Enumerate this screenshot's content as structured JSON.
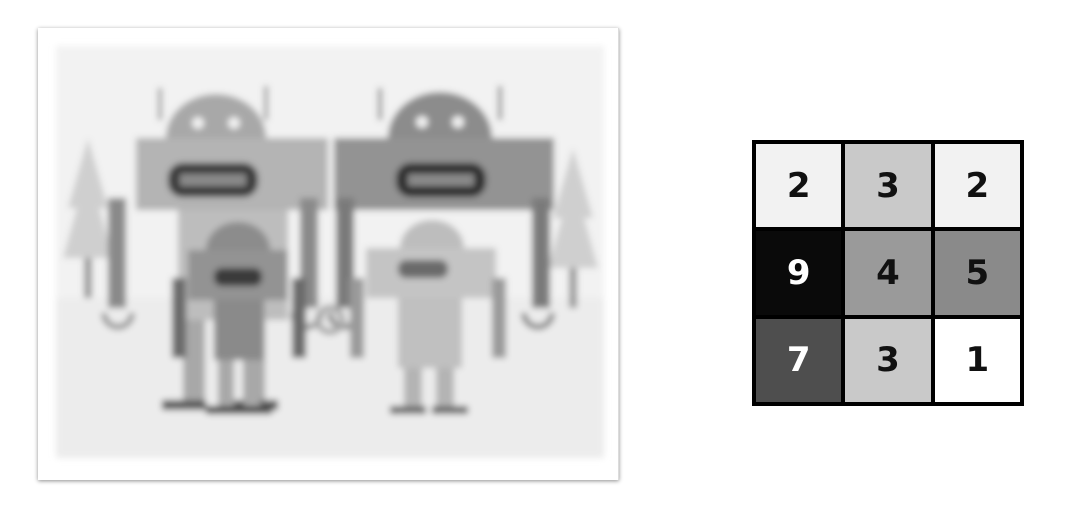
{
  "image": {
    "subject": "robot-family-illustration",
    "style": "blurred-grayscale"
  },
  "kernel": {
    "rows": [
      [
        {
          "value": "2",
          "shade": "#f2f2f2",
          "text_color": "#111111"
        },
        {
          "value": "3",
          "shade": "#c9c9c9",
          "text_color": "#111111"
        },
        {
          "value": "2",
          "shade": "#f2f2f2",
          "text_color": "#111111"
        }
      ],
      [
        {
          "value": "9",
          "shade": "#0a0a0a",
          "text_color": "#ffffff"
        },
        {
          "value": "4",
          "shade": "#9a9a9a",
          "text_color": "#111111"
        },
        {
          "value": "5",
          "shade": "#8a8a8a",
          "text_color": "#111111"
        }
      ],
      [
        {
          "value": "7",
          "shade": "#4e4e4e",
          "text_color": "#ffffff"
        },
        {
          "value": "3",
          "shade": "#c9c9c9",
          "text_color": "#111111"
        },
        {
          "value": "1",
          "shade": "#ffffff",
          "text_color": "#111111"
        }
      ]
    ]
  }
}
